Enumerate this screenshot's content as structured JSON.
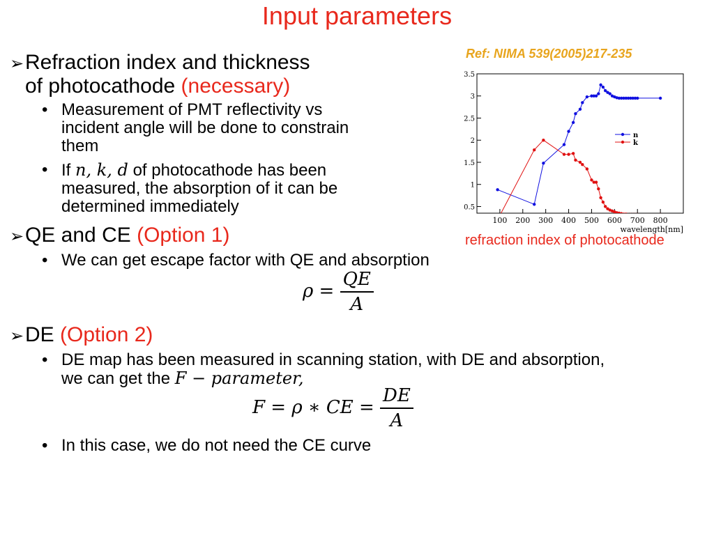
{
  "page": {
    "title": "Input parameters",
    "ref": "Ref: NIMA 539(2005)217-235",
    "caption": "refraction index of photocathode"
  },
  "bullets": {
    "b1": {
      "line1": "Refraction index and thickness",
      "line2": "of photocathode",
      "tag": "(necessary)",
      "sub1": {
        "l1": "Measurement of PMT reflectivity vs",
        "l2": "incident angle will be done to constrain",
        "l3": "them"
      },
      "sub2": {
        "pre": "If",
        "vars": "n, k, d",
        "post": "of photocathode has been",
        "l2": "measured, the absorption of it can be",
        "l3": "determined immediately"
      }
    },
    "b2": {
      "text": "QE and CE",
      "tag": "(Option 1)",
      "sub1": "We  can get escape factor with QE and absorption",
      "eq_lhs": "ρ =",
      "eq_num": "QE",
      "eq_den": "A"
    },
    "b3": {
      "text": "DE",
      "tag": "(Option 2)",
      "sub1_l1": "DE map has been measured in scanning station, with DE and absorption,",
      "sub1_l2_pre": "we can get the",
      "sub1_l2_math": "F − parameter,",
      "eq_lhs": "F =  ρ ∗ CE =",
      "eq_num": "DE",
      "eq_den": "A",
      "sub2": "In this case, we do not need the CE curve"
    }
  },
  "chart_data": {
    "type": "line",
    "xlabel": "wavelength[nm]",
    "ylabel": "",
    "xlim": [
      0,
      900
    ],
    "ylim": [
      0.35,
      3.5
    ],
    "xticks": [
      100,
      200,
      300,
      400,
      500,
      600,
      700,
      800
    ],
    "yticks": [
      0.5,
      1,
      1.5,
      2,
      2.5,
      3,
      3.5
    ],
    "ytick_labels": [
      "0.5",
      "1",
      "1.5",
      "2",
      "2.5",
      "3",
      "3.5"
    ],
    "legend_position": "right",
    "series": [
      {
        "name": "n",
        "color": "#1010e0",
        "x": [
          90,
          250,
          290,
          380,
          400,
          420,
          430,
          450,
          460,
          480,
          500,
          510,
          520,
          530,
          540,
          550,
          560,
          570,
          580,
          590,
          600,
          610,
          620,
          630,
          640,
          650,
          660,
          670,
          680,
          690,
          700,
          800
        ],
        "y": [
          0.88,
          0.55,
          1.48,
          1.9,
          2.2,
          2.4,
          2.6,
          2.7,
          2.85,
          2.98,
          3.0,
          3.0,
          3.0,
          3.05,
          3.25,
          3.2,
          3.12,
          3.08,
          3.05,
          3.0,
          2.98,
          2.96,
          2.95,
          2.95,
          2.95,
          2.95,
          2.95,
          2.95,
          2.95,
          2.95,
          2.95,
          2.95
        ]
      },
      {
        "name": "k",
        "color": "#e01010",
        "x": [
          100,
          250,
          290,
          380,
          400,
          420,
          430,
          450,
          460,
          480,
          500,
          510,
          520,
          530,
          540,
          550,
          560,
          570,
          580,
          590,
          600,
          610,
          620,
          630,
          640,
          650,
          660,
          670,
          680,
          690,
          700,
          800
        ],
        "y": [
          0.3,
          1.78,
          2.0,
          1.68,
          1.68,
          1.7,
          1.55,
          1.5,
          1.45,
          1.35,
          1.1,
          1.05,
          1.05,
          0.9,
          0.7,
          0.6,
          0.5,
          0.45,
          0.42,
          0.4,
          0.38,
          0.36,
          0.35,
          0.34,
          0.33,
          0.33,
          0.32,
          0.32,
          0.32,
          0.32,
          0.32,
          0.32
        ]
      }
    ]
  }
}
